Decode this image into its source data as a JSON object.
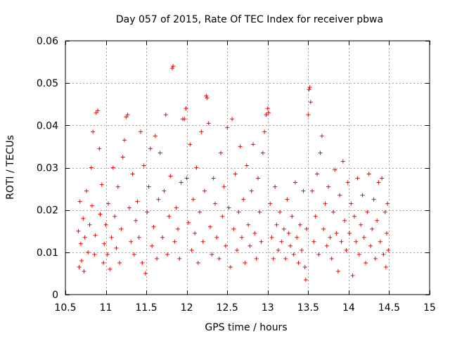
{
  "chart_data": {
    "type": "scatter",
    "title": "Day 057 of 2015, Rate Of TEC Index for receiver pbwa",
    "xlabel": "GPS time / hours",
    "ylabel": "ROTI / TECUs",
    "xlim": [
      10.5,
      15
    ],
    "ylim": [
      0,
      0.06
    ],
    "xticks": [
      10.5,
      11,
      11.5,
      12,
      12.5,
      13,
      13.5,
      14,
      14.5,
      15
    ],
    "xtick_labels": [
      "10.5",
      "11",
      "11.5",
      "12",
      "12.5",
      "13",
      "13.5",
      "14",
      "14.5",
      "15"
    ],
    "yticks": [
      0,
      0.01,
      0.02,
      0.03,
      0.04,
      0.05,
      0.06
    ],
    "ytick_labels": [
      "0",
      "0.01",
      "0.02",
      "0.03",
      "0.04",
      "0.05",
      "0.06"
    ],
    "grid": true,
    "marker": "plus",
    "series": [
      {
        "name": "ROTI",
        "color": "#ff0000",
        "points": [
          [
            10.66,
            0.015
          ],
          [
            10.67,
            0.0065
          ],
          [
            10.68,
            0.022
          ],
          [
            10.69,
            0.012
          ],
          [
            10.7,
            0.008
          ],
          [
            10.72,
            0.018
          ],
          [
            10.73,
            0.0055
          ],
          [
            10.74,
            0.0135
          ],
          [
            10.76,
            0.0245
          ],
          [
            10.78,
            0.01
          ],
          [
            10.8,
            0.0165
          ],
          [
            10.82,
            0.03
          ],
          [
            10.83,
            0.021
          ],
          [
            10.84,
            0.0385
          ],
          [
            10.86,
            0.0095
          ],
          [
            10.87,
            0.014
          ],
          [
            10.88,
            0.043
          ],
          [
            10.9,
            0.0435
          ],
          [
            10.92,
            0.0345
          ],
          [
            10.93,
            0.019
          ],
          [
            10.95,
            0.026
          ],
          [
            10.97,
            0.0075
          ],
          [
            10.98,
            0.012
          ],
          [
            11.0,
            0.0165
          ],
          [
            11.02,
            0.0095
          ],
          [
            11.03,
            0.0215
          ],
          [
            11.05,
            0.006
          ],
          [
            11.07,
            0.0135
          ],
          [
            11.09,
            0.03
          ],
          [
            11.11,
            0.0185
          ],
          [
            11.13,
            0.011
          ],
          [
            11.15,
            0.0255
          ],
          [
            11.17,
            0.0075
          ],
          [
            11.19,
            0.0155
          ],
          [
            11.21,
            0.0325
          ],
          [
            11.23,
            0.0365
          ],
          [
            11.25,
            0.042
          ],
          [
            11.27,
            0.0425
          ],
          [
            11.29,
            0.0205
          ],
          [
            11.31,
            0.0125
          ],
          [
            11.33,
            0.0285
          ],
          [
            11.35,
            0.0095
          ],
          [
            11.37,
            0.0175
          ],
          [
            11.39,
            0.022
          ],
          [
            11.41,
            0.0135
          ],
          [
            11.43,
            0.0385
          ],
          [
            11.45,
            0.0075
          ],
          [
            11.47,
            0.0305
          ],
          [
            11.49,
            0.005
          ],
          [
            11.51,
            0.0195
          ],
          [
            11.53,
            0.0255
          ],
          [
            11.55,
            0.0345
          ],
          [
            11.57,
            0.0115
          ],
          [
            11.59,
            0.016
          ],
          [
            11.61,
            0.0375
          ],
          [
            11.63,
            0.0085
          ],
          [
            11.65,
            0.0225
          ],
          [
            11.67,
            0.0335
          ],
          [
            11.7,
            0.0135
          ],
          [
            11.72,
            0.0245
          ],
          [
            11.74,
            0.0425
          ],
          [
            11.76,
            0.0095
          ],
          [
            11.78,
            0.0185
          ],
          [
            11.8,
            0.028
          ],
          [
            11.82,
            0.0535
          ],
          [
            11.83,
            0.054
          ],
          [
            11.85,
            0.0125
          ],
          [
            11.87,
            0.0205
          ],
          [
            11.89,
            0.0155
          ],
          [
            11.91,
            0.0085
          ],
          [
            11.93,
            0.0265
          ],
          [
            11.95,
            0.0415
          ],
          [
            11.97,
            0.0415
          ],
          [
            11.99,
            0.044
          ],
          [
            12.0,
            0.0275
          ],
          [
            12.02,
            0.017
          ],
          [
            12.04,
            0.0355
          ],
          [
            12.06,
            0.0105
          ],
          [
            12.08,
            0.0225
          ],
          [
            12.1,
            0.0145
          ],
          [
            12.12,
            0.03
          ],
          [
            12.14,
            0.0075
          ],
          [
            12.16,
            0.0195
          ],
          [
            12.18,
            0.0385
          ],
          [
            12.2,
            0.0125
          ],
          [
            12.22,
            0.0245
          ],
          [
            12.24,
            0.047
          ],
          [
            12.25,
            0.0465
          ],
          [
            12.27,
            0.0405
          ],
          [
            12.29,
            0.016
          ],
          [
            12.31,
            0.0095
          ],
          [
            12.33,
            0.0275
          ],
          [
            12.35,
            0.0215
          ],
          [
            12.37,
            0.0135
          ],
          [
            12.4,
            0.0085
          ],
          [
            12.42,
            0.0335
          ],
          [
            12.44,
            0.0185
          ],
          [
            12.46,
            0.0255
          ],
          [
            12.48,
            0.0115
          ],
          [
            12.5,
            0.0395
          ],
          [
            12.52,
            0.0205
          ],
          [
            12.54,
            0.0065
          ],
          [
            12.56,
            0.0415
          ],
          [
            12.58,
            0.0155
          ],
          [
            12.6,
            0.0285
          ],
          [
            12.62,
            0.0105
          ],
          [
            12.64,
            0.0195
          ],
          [
            12.66,
            0.035
          ],
          [
            12.68,
            0.0135
          ],
          [
            12.7,
            0.0225
          ],
          [
            12.72,
            0.0075
          ],
          [
            12.74,
            0.0305
          ],
          [
            12.76,
            0.0165
          ],
          [
            12.78,
            0.0115
          ],
          [
            12.8,
            0.0245
          ],
          [
            12.82,
            0.0355
          ],
          [
            12.84,
            0.0145
          ],
          [
            12.86,
            0.0085
          ],
          [
            12.88,
            0.0275
          ],
          [
            12.9,
            0.0195
          ],
          [
            12.92,
            0.0125
          ],
          [
            12.94,
            0.0335
          ],
          [
            12.96,
            0.0385
          ],
          [
            12.98,
            0.0425
          ],
          [
            13.0,
            0.044
          ],
          [
            13.01,
            0.043
          ],
          [
            13.03,
            0.0215
          ],
          [
            13.05,
            0.0135
          ],
          [
            13.07,
            0.0085
          ],
          [
            13.09,
            0.0255
          ],
          [
            13.11,
            0.0165
          ],
          [
            13.13,
            0.0105
          ],
          [
            13.15,
            0.0195
          ],
          [
            13.17,
            0.0125
          ],
          [
            13.2,
            0.0155
          ],
          [
            13.22,
            0.0085
          ],
          [
            13.24,
            0.0225
          ],
          [
            13.26,
            0.0145
          ],
          [
            13.28,
            0.0115
          ],
          [
            13.3,
            0.0185
          ],
          [
            13.32,
            0.0095
          ],
          [
            13.34,
            0.0265
          ],
          [
            13.36,
            0.0135
          ],
          [
            13.38,
            0.0075
          ],
          [
            13.4,
            0.0165
          ],
          [
            13.42,
            0.0105
          ],
          [
            13.44,
            0.0245
          ],
          [
            13.46,
            0.0065
          ],
          [
            13.47,
            0.0035
          ],
          [
            13.48,
            0.0155
          ],
          [
            13.5,
            0.0425
          ],
          [
            13.51,
            0.0485
          ],
          [
            13.52,
            0.049
          ],
          [
            13.53,
            0.0455
          ],
          [
            13.55,
            0.0245
          ],
          [
            13.57,
            0.0125
          ],
          [
            13.59,
            0.0185
          ],
          [
            13.61,
            0.0285
          ],
          [
            13.63,
            0.0095
          ],
          [
            13.65,
            0.0335
          ],
          [
            13.67,
            0.0375
          ],
          [
            13.69,
            0.0155
          ],
          [
            13.71,
            0.0215
          ],
          [
            13.73,
            0.0115
          ],
          [
            13.75,
            0.0255
          ],
          [
            13.77,
            0.0135
          ],
          [
            13.79,
            0.0085
          ],
          [
            13.81,
            0.0195
          ],
          [
            13.83,
            0.0295
          ],
          [
            13.85,
            0.0145
          ],
          [
            13.87,
            0.0055
          ],
          [
            13.89,
            0.0235
          ],
          [
            13.91,
            0.0125
          ],
          [
            13.93,
            0.0315
          ],
          [
            13.95,
            0.0175
          ],
          [
            13.97,
            0.0105
          ],
          [
            13.99,
            0.0265
          ],
          [
            14.01,
            0.0145
          ],
          [
            14.03,
            0.0215
          ],
          [
            14.05,
            0.0045
          ],
          [
            14.07,
            0.0185
          ],
          [
            14.09,
            0.0125
          ],
          [
            14.11,
            0.0275
          ],
          [
            14.13,
            0.0095
          ],
          [
            14.15,
            0.0165
          ],
          [
            14.17,
            0.0235
          ],
          [
            14.19,
            0.0135
          ],
          [
            14.21,
            0.0075
          ],
          [
            14.23,
            0.0195
          ],
          [
            14.25,
            0.0285
          ],
          [
            14.27,
            0.0115
          ],
          [
            14.29,
            0.0155
          ],
          [
            14.31,
            0.0225
          ],
          [
            14.33,
            0.0085
          ],
          [
            14.35,
            0.0175
          ],
          [
            14.37,
            0.0265
          ],
          [
            14.39,
            0.0125
          ],
          [
            14.41,
            0.0275
          ],
          [
            14.43,
            0.0095
          ],
          [
            14.45,
            0.0195
          ],
          [
            14.46,
            0.0065
          ],
          [
            14.47,
            0.0145
          ],
          [
            14.48,
            0.0215
          ],
          [
            14.49,
            0.0105
          ]
        ]
      }
    ]
  }
}
